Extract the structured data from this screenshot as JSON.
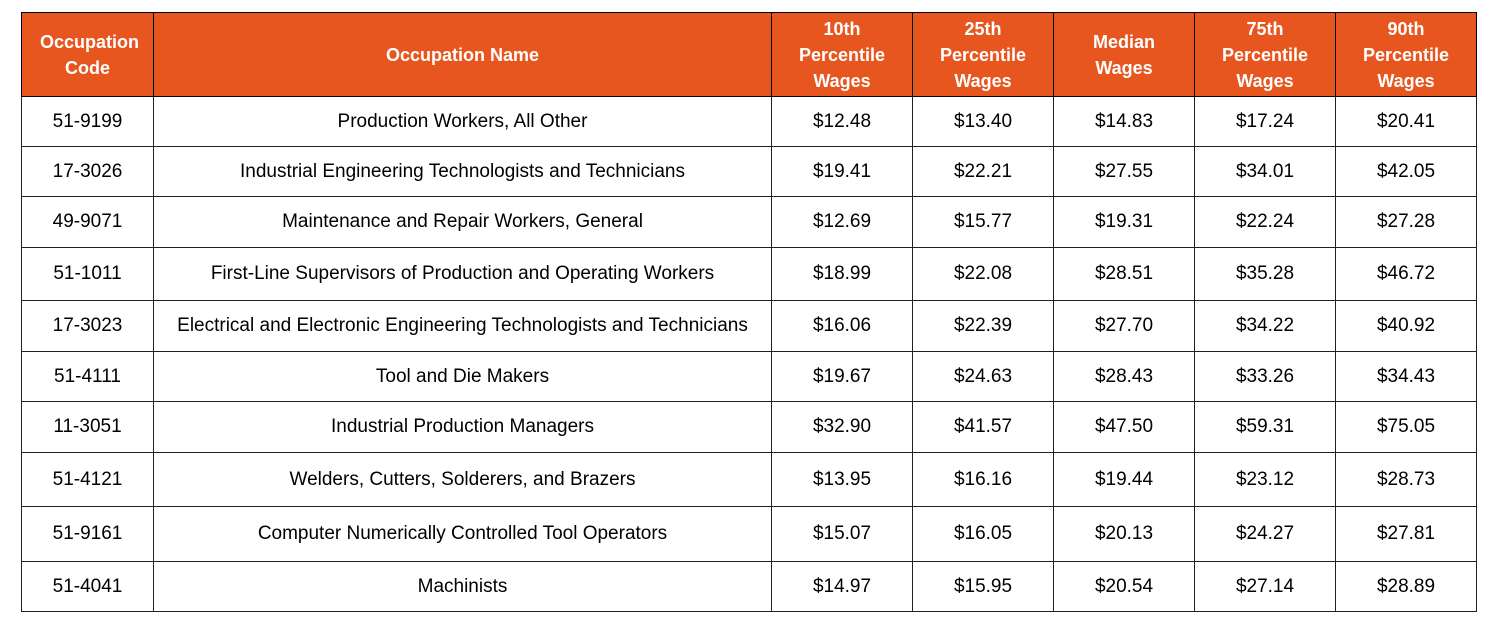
{
  "table": {
    "headers": [
      "Occupation Code",
      "Occupation Name",
      "10th Percentile Wages",
      "25th Percentile Wages",
      "Median Wages",
      "75th Percentile Wages",
      "90th Percentile Wages"
    ],
    "rows": [
      [
        "51-9199",
        "Production Workers, All Other",
        "$12.48",
        "$13.40",
        "$14.83",
        "$17.24",
        "$20.41"
      ],
      [
        "17-3026",
        "Industrial Engineering Technologists and Technicians",
        "$19.41",
        "$22.21",
        "$27.55",
        "$34.01",
        "$42.05"
      ],
      [
        "49-9071",
        "Maintenance and Repair Workers, General",
        "$12.69",
        "$15.77",
        "$19.31",
        "$22.24",
        "$27.28"
      ],
      [
        "51-1011",
        "First-Line Supervisors of Production and Operating Workers",
        "$18.99",
        "$22.08",
        "$28.51",
        "$35.28",
        "$46.72"
      ],
      [
        "17-3023",
        "Electrical and Electronic Engineering Technologists and Technicians",
        "$16.06",
        "$22.39",
        "$27.70",
        "$34.22",
        "$40.92"
      ],
      [
        "51-4111",
        "Tool and Die Makers",
        "$19.67",
        "$24.63",
        "$28.43",
        "$33.26",
        "$34.43"
      ],
      [
        "11-3051",
        "Industrial Production Managers",
        "$32.90",
        "$41.57",
        "$47.50",
        "$59.31",
        "$75.05"
      ],
      [
        "51-4121",
        "Welders, Cutters, Solderers, and Brazers",
        "$13.95",
        "$16.16",
        "$19.44",
        "$23.12",
        "$28.73"
      ],
      [
        "51-9161",
        "Computer Numerically Controlled Tool Operators",
        "$15.07",
        "$16.05",
        "$20.13",
        "$24.27",
        "$27.81"
      ],
      [
        "51-4041",
        "Machinists",
        "$14.97",
        "$15.95",
        "$20.54",
        "$27.14",
        "$28.89"
      ]
    ]
  }
}
